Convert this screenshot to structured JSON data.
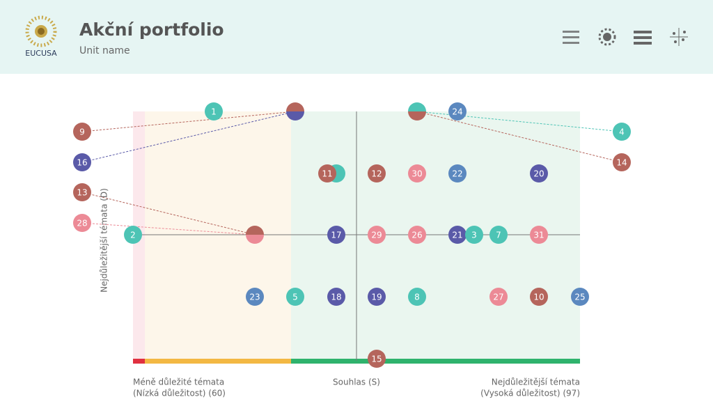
{
  "header": {
    "logo_text": "EUCUSA",
    "title": "Akční portfolio",
    "subtitle": "Unit name"
  },
  "chart": {
    "y_axis_label": "Nejdůležitější témata   (D)",
    "x_left_label": [
      "Méně důležité témata",
      "(Nízká důležitost) (60)"
    ],
    "x_center_label": "Souhlas (S)",
    "x_right_label": [
      "Nejdůležitější témata",
      "(Vysoká důležitost) (97)"
    ],
    "nodes": [
      {
        "label": "1",
        "color": "#4dc4b5"
      },
      {
        "label": "9",
        "color": "#b5655c"
      },
      {
        "label": "16",
        "color": "#5a5aa8"
      },
      {
        "label": "13",
        "color": "#b5655c"
      },
      {
        "label": "28",
        "color": "#ec8a96"
      },
      {
        "label": "2",
        "color": "#4dc4b5"
      },
      {
        "label": "4",
        "color": "#4dc4b5"
      },
      {
        "label": "14",
        "color": "#b5655c"
      },
      {
        "label": "24",
        "color": "#5b88bf"
      },
      {
        "label": "11",
        "color": "#b5655c"
      },
      {
        "label": "12",
        "color": "#b5655c"
      },
      {
        "label": "30",
        "color": "#ec8a96"
      },
      {
        "label": "22",
        "color": "#5b88bf"
      },
      {
        "label": "20",
        "color": "#5a5aa8"
      },
      {
        "label": "17",
        "color": "#5a5aa8"
      },
      {
        "label": "29",
        "color": "#ec8a96"
      },
      {
        "label": "26",
        "color": "#ec8a96"
      },
      {
        "label": "21",
        "color": "#5a5aa8"
      },
      {
        "label": "3",
        "color": "#4dc4b5"
      },
      {
        "label": "7",
        "color": "#4dc4b5"
      },
      {
        "label": "31",
        "color": "#ec8a96"
      },
      {
        "label": "23",
        "color": "#5b88bf"
      },
      {
        "label": "5",
        "color": "#4dc4b5"
      },
      {
        "label": "18",
        "color": "#5a5aa8"
      },
      {
        "label": "19",
        "color": "#5a5aa8"
      },
      {
        "label": "8",
        "color": "#4dc4b5"
      },
      {
        "label": "27",
        "color": "#ec8a96"
      },
      {
        "label": "10",
        "color": "#b5655c"
      },
      {
        "label": "25",
        "color": "#5b88bf"
      },
      {
        "label": "15",
        "color": "#b5655c"
      }
    ]
  }
}
